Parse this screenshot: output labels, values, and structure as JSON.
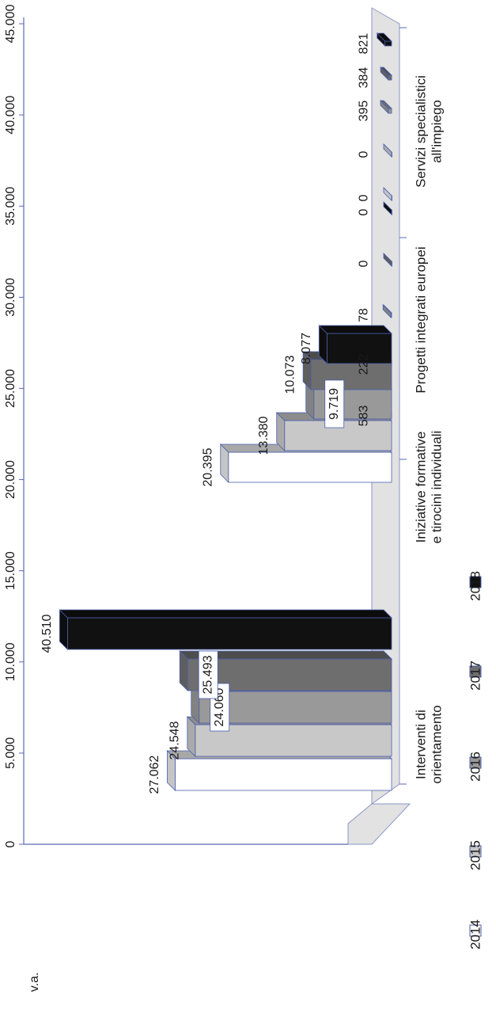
{
  "chart_data": {
    "type": "bar",
    "orientation": "horizontal-3d, image rotated 90deg counter-clockwise",
    "ylabel": "v.a.",
    "ylim": [
      0,
      45000
    ],
    "yticks": [
      0,
      5000,
      10000,
      15000,
      20000,
      25000,
      30000,
      35000,
      40000,
      45000
    ],
    "ytick_labels": [
      "0",
      "5.000",
      "10.000",
      "15.000",
      "20.000",
      "25.000",
      "30.000",
      "35.000",
      "40.000",
      "45.000"
    ],
    "categories": [
      {
        "line1": "Interventi di",
        "line2": "orientamento"
      },
      {
        "line1": "Iniziative formative",
        "line2": "e tirocini individuali"
      },
      {
        "line1": "Progetti integrati europei",
        "line2": ""
      },
      {
        "line1": "Servizi specialistici",
        "line2": "all'impiego"
      }
    ],
    "series": [
      {
        "name": "2014",
        "color": "#ffffff",
        "values": [
          27062,
          20395,
          583,
          0
        ],
        "labels": [
          "27.062",
          "20.395",
          "583",
          "0"
        ]
      },
      {
        "name": "2015",
        "color": "#c8c8c8",
        "values": [
          24548,
          13380,
          222,
          0
        ],
        "labels": [
          "24.548",
          "13.380",
          "222",
          "0"
        ]
      },
      {
        "name": "2016",
        "color": "#999999",
        "values": [
          24060,
          9719,
          78,
          395
        ],
        "labels": [
          "24.060",
          "9.719",
          "78",
          "395"
        ]
      },
      {
        "name": "2017",
        "color": "#6e6e6e",
        "values": [
          25493,
          10073,
          0,
          384
        ],
        "labels": [
          "25.493",
          "10.073",
          "0",
          "384"
        ]
      },
      {
        "name": "2018",
        "color": "#111111",
        "values": [
          40510,
          8077,
          0,
          821
        ],
        "labels": [
          "40.510",
          "8.077",
          "0",
          "821"
        ]
      }
    ],
    "legend": {
      "placement": "bottom",
      "items": [
        "2014",
        "2015",
        "2016",
        "2017",
        "2018"
      ]
    },
    "grid": false
  }
}
